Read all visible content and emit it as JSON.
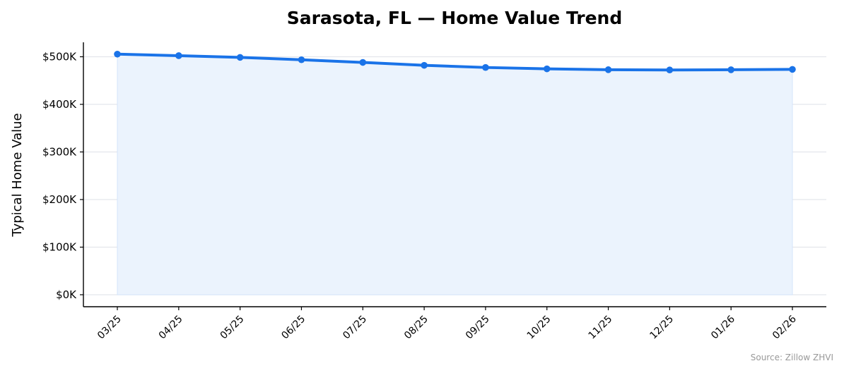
{
  "chart_data": {
    "type": "area",
    "title": "Sarasota, FL — Home Value Trend",
    "xlabel": "",
    "ylabel": "Typical Home Value",
    "categories": [
      "03/25",
      "04/25",
      "05/25",
      "06/25",
      "07/25",
      "08/25",
      "09/25",
      "10/25",
      "11/25",
      "12/25",
      "01/26",
      "02/26"
    ],
    "values": [
      505500,
      502300,
      498700,
      493700,
      488100,
      482000,
      477500,
      474600,
      472800,
      472300,
      472700,
      473500
    ],
    "ylim": [
      0,
      500000
    ],
    "yticks": [
      0,
      100000,
      200000,
      300000,
      400000,
      500000
    ],
    "ytick_labels": [
      "$0K",
      "$100K",
      "$200K",
      "$300K",
      "$400K",
      "$500K"
    ],
    "grid": true,
    "legend": "none",
    "line_color": "#1a73e8",
    "fill_color": "#ebf3fd",
    "source": "Source: Zillow ZHVI"
  }
}
